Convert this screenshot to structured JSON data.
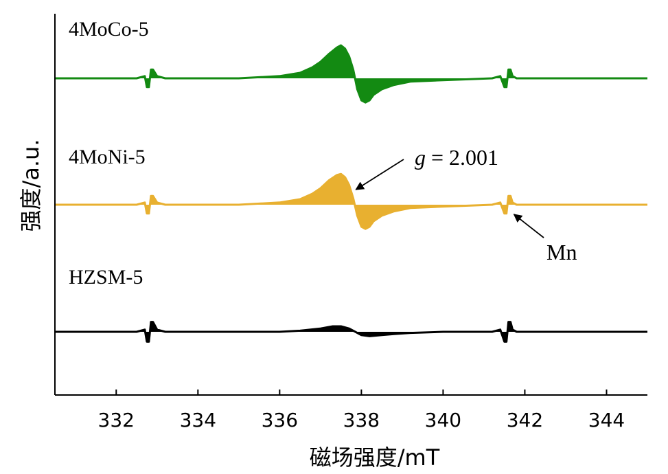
{
  "chart_data": {
    "type": "line",
    "title": "",
    "xlabel": "磁场强度/mT",
    "ylabel": "强度/a.u.",
    "xlim": [
      330.5,
      345
    ],
    "xticks": [
      332,
      334,
      336,
      338,
      340,
      342,
      344
    ],
    "xtick_labels": [
      "332",
      "334",
      "336",
      "338",
      "340",
      "342",
      "344"
    ],
    "grid": false,
    "legend": "none",
    "series": [
      {
        "name": "4MoCo-5",
        "color": "#138a12",
        "offset": 2,
        "x": [
          330.5,
          332.5,
          332.7,
          332.75,
          332.8,
          332.85,
          332.9,
          333.0,
          333.2,
          334.0,
          335.0,
          336.0,
          336.5,
          336.8,
          337.0,
          337.2,
          337.4,
          337.5,
          337.6,
          337.7,
          337.8,
          337.9,
          338.0,
          338.1,
          338.2,
          338.3,
          338.5,
          338.8,
          339.2,
          339.8,
          340.5,
          341.2,
          341.4,
          341.5,
          341.55,
          341.6,
          341.65,
          341.7,
          341.8,
          342.0,
          343.0,
          345.0
        ],
        "y": [
          0.0,
          0.0,
          0.02,
          -0.08,
          -0.08,
          0.08,
          0.08,
          0.02,
          0.0,
          0.0,
          0.0,
          0.02,
          0.05,
          0.1,
          0.15,
          0.22,
          0.28,
          0.3,
          0.27,
          0.2,
          0.08,
          -0.1,
          -0.2,
          -0.22,
          -0.2,
          -0.15,
          -0.1,
          -0.06,
          -0.03,
          -0.02,
          -0.01,
          0.0,
          0.02,
          -0.08,
          -0.08,
          0.08,
          0.08,
          0.02,
          0.0,
          0.0,
          0.0,
          0.0
        ]
      },
      {
        "name": "4MoNi-5",
        "color": "#e8b030",
        "offset": 1,
        "x": [
          330.5,
          332.5,
          332.7,
          332.75,
          332.8,
          332.85,
          332.9,
          333.0,
          333.2,
          334.0,
          335.0,
          336.0,
          336.5,
          336.8,
          337.0,
          337.2,
          337.4,
          337.5,
          337.6,
          337.7,
          337.8,
          337.9,
          338.0,
          338.1,
          338.2,
          338.3,
          338.5,
          338.8,
          339.2,
          339.8,
          340.5,
          341.2,
          341.4,
          341.5,
          341.55,
          341.6,
          341.65,
          341.7,
          341.8,
          342.0,
          343.0,
          345.0
        ],
        "y": [
          0.0,
          0.0,
          0.02,
          -0.08,
          -0.08,
          0.08,
          0.08,
          0.02,
          0.0,
          0.0,
          0.0,
          0.02,
          0.05,
          0.1,
          0.15,
          0.22,
          0.27,
          0.28,
          0.25,
          0.18,
          0.06,
          -0.1,
          -0.2,
          -0.22,
          -0.2,
          -0.15,
          -0.1,
          -0.06,
          -0.03,
          -0.02,
          -0.01,
          0.0,
          0.02,
          -0.08,
          -0.08,
          0.08,
          0.08,
          0.02,
          0.0,
          0.0,
          0.0,
          0.0
        ]
      },
      {
        "name": "HZSM-5",
        "color": "#000000",
        "offset": 0,
        "x": [
          330.5,
          332.5,
          332.7,
          332.75,
          332.8,
          332.85,
          332.9,
          333.0,
          333.2,
          334.0,
          335.0,
          336.0,
          336.5,
          337.0,
          337.3,
          337.5,
          337.7,
          337.9,
          338.0,
          338.2,
          338.5,
          338.8,
          339.2,
          340.0,
          341.2,
          341.4,
          341.5,
          341.55,
          341.6,
          341.65,
          341.7,
          341.8,
          342.0,
          343.0,
          345.0
        ],
        "y": [
          0.0,
          0.0,
          0.02,
          -0.09,
          -0.09,
          0.09,
          0.09,
          0.02,
          0.0,
          0.0,
          0.0,
          0.0,
          0.01,
          0.03,
          0.05,
          0.05,
          0.03,
          -0.01,
          -0.03,
          -0.04,
          -0.03,
          -0.02,
          -0.01,
          0.0,
          0.0,
          0.02,
          -0.09,
          -0.09,
          0.09,
          0.09,
          0.02,
          0.0,
          0.0,
          0.0,
          0.0
        ]
      }
    ],
    "annotations": [
      {
        "text_italic": "g",
        "text": " = 2.001",
        "points_to": [
          337.9,
          1.1
        ]
      },
      {
        "text": "Mn",
        "points_to": [
          341.6,
          0.9
        ]
      }
    ]
  }
}
